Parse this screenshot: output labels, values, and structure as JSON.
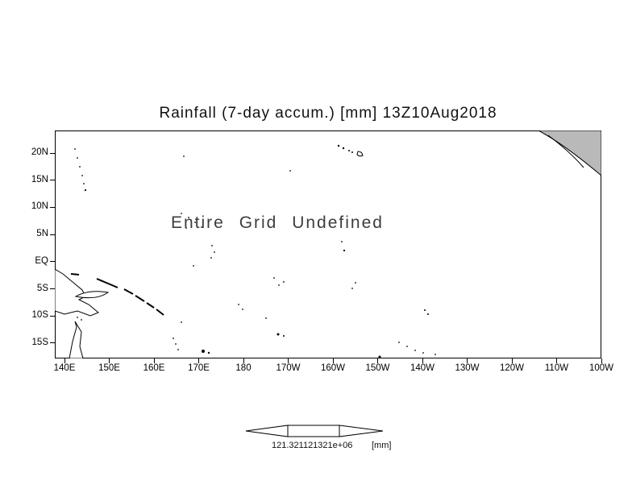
{
  "title": "Rainfall (7-day accum.) [mm] 13Z10Aug2018",
  "annotation": "Entire Grid Undefined",
  "axes": {
    "y_ticks": [
      "20N",
      "15N",
      "10N",
      "5N",
      "EQ",
      "5S",
      "10S",
      "15S"
    ],
    "x_ticks": [
      "140E",
      "150E",
      "160E",
      "170E",
      "180",
      "170W",
      "160W",
      "150W",
      "140W",
      "130W",
      "120W",
      "110W",
      "100W"
    ]
  },
  "colorbar": {
    "value_label": "121.321121321e+06",
    "units_label": "[mm]"
  },
  "colors": {
    "land_fill": "#b9b9b9",
    "line": "#000000",
    "background": "#ffffff"
  },
  "chart_data": {
    "type": "heatmap",
    "title": "Rainfall (7-day accum.) [mm] 13Z10Aug2018",
    "variable": "Rainfall (7-day accum.)",
    "units": "mm",
    "valid_time": "13Z10Aug2018",
    "status": "Entire Grid Undefined",
    "values": [],
    "x_tick_labels": [
      "140E",
      "150E",
      "160E",
      "170E",
      "180",
      "170W",
      "160W",
      "150W",
      "140W",
      "130W",
      "120W",
      "110W",
      "100W"
    ],
    "y_tick_labels": [
      "20N",
      "15N",
      "10N",
      "5N",
      "EQ",
      "5S",
      "10S",
      "15S"
    ],
    "lon_range_deg_east": [
      138,
      260
    ],
    "lat_range_deg": [
      -18,
      24
    ],
    "grid": false,
    "legend": "colorbar-bottom",
    "colorbar_tick_labels": [
      "121.321121321e+06"
    ],
    "basemap": "Pacific Ocean coastlines"
  }
}
